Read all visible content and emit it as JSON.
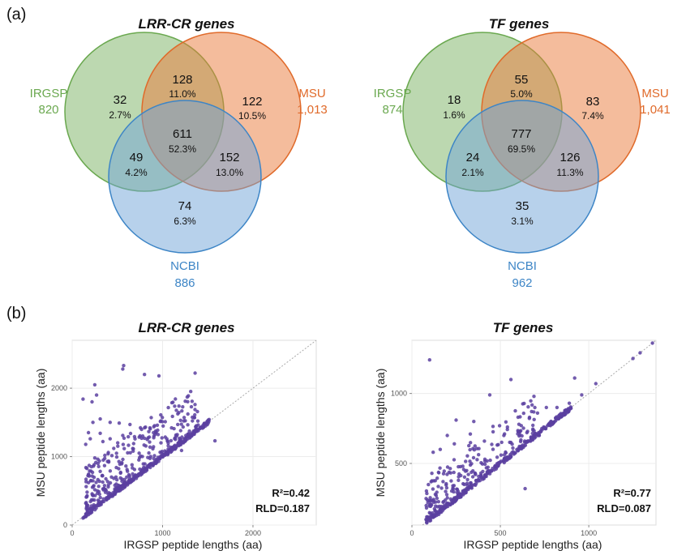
{
  "panel_labels": {
    "a": "(a)",
    "b": "(b)"
  },
  "colors": {
    "IRGSP": "#6aa84f",
    "MSU": "#e06a2a",
    "NCBI": "#3d85c6",
    "points": "#5b3fa0"
  },
  "chart_data": [
    {
      "type": "venn",
      "title": "LRR-CR genes",
      "sets": [
        {
          "name": "IRGSP",
          "total": "820"
        },
        {
          "name": "MSU",
          "total": "1,013"
        },
        {
          "name": "NCBI",
          "total": "886"
        }
      ],
      "regions": {
        "IRGSP_only": {
          "count": "32",
          "pct": "2.7%"
        },
        "IRGSP_MSU": {
          "count": "128",
          "pct": "11.0%"
        },
        "MSU_only": {
          "count": "122",
          "pct": "10.5%"
        },
        "all": {
          "count": "611",
          "pct": "52.3%"
        },
        "IRGSP_NCBI": {
          "count": "49",
          "pct": "4.2%"
        },
        "MSU_NCBI": {
          "count": "152",
          "pct": "13.0%"
        },
        "NCBI_only": {
          "count": "74",
          "pct": "6.3%"
        }
      }
    },
    {
      "type": "venn",
      "title": "TF genes",
      "sets": [
        {
          "name": "IRGSP",
          "total": "874"
        },
        {
          "name": "MSU",
          "total": "1,041"
        },
        {
          "name": "NCBI",
          "total": "962"
        }
      ],
      "regions": {
        "IRGSP_only": {
          "count": "18",
          "pct": "1.6%"
        },
        "IRGSP_MSU": {
          "count": "55",
          "pct": "5.0%"
        },
        "MSU_only": {
          "count": "83",
          "pct": "7.4%"
        },
        "all": {
          "count": "777",
          "pct": "69.5%"
        },
        "IRGSP_NCBI": {
          "count": "24",
          "pct": "2.1%"
        },
        "MSU_NCBI": {
          "count": "126",
          "pct": "11.3%"
        },
        "NCBI_only": {
          "count": "35",
          "pct": "3.1%"
        }
      }
    },
    {
      "type": "scatter",
      "title": "LRR-CR genes",
      "xlabel": "IRGSP peptide lengths (aa)",
      "ylabel": "MSU peptide lengths (aa)",
      "xlim": [
        0,
        2700
      ],
      "ylim": [
        0,
        2700
      ],
      "xticks": [
        0,
        1000,
        2000
      ],
      "yticks": [
        0,
        1000,
        2000
      ],
      "grid": true,
      "reference_line": "y = x",
      "r2": "R²=0.42",
      "rld": "RLD=0.187",
      "outliers": [
        [
          120,
          1840
        ],
        [
          220,
          1800
        ],
        [
          250,
          2050
        ],
        [
          270,
          1900
        ],
        [
          230,
          1500
        ],
        [
          180,
          1350
        ],
        [
          560,
          2280
        ],
        [
          570,
          2330
        ],
        [
          800,
          2200
        ],
        [
          960,
          2180
        ],
        [
          1360,
          2220
        ],
        [
          1580,
          1230
        ],
        [
          1210,
          1090
        ],
        [
          1130,
          1150
        ],
        [
          310,
          1550
        ],
        [
          420,
          1500
        ],
        [
          520,
          1490
        ],
        [
          640,
          1470
        ],
        [
          980,
          1520
        ],
        [
          1030,
          1510
        ],
        [
          200,
          1260
        ],
        [
          420,
          1260
        ],
        [
          150,
          1180
        ],
        [
          340,
          1220
        ],
        [
          460,
          1120
        ],
        [
          680,
          1190
        ],
        [
          780,
          1300
        ],
        [
          900,
          1350
        ],
        [
          1100,
          1420
        ],
        [
          1200,
          1380
        ],
        [
          310,
          1340
        ],
        [
          560,
          1310
        ],
        [
          860,
          1420
        ],
        [
          250,
          980
        ],
        [
          400,
          1060
        ]
      ],
      "cluster": {
        "n": 330,
        "xmin": 150,
        "xmax": 1400,
        "ymin_offset": 0,
        "ymax_offset": 700,
        "seed": 7
      },
      "diag": {
        "n": 260,
        "xmin": 120,
        "xmax": 1520,
        "jitter": 30,
        "seed": 11
      }
    },
    {
      "type": "scatter",
      "title": "TF genes",
      "xlabel": "IRGSP peptide lengths (aa)",
      "ylabel": "MSU peptide lengths (aa)",
      "xlim": [
        0,
        1380
      ],
      "ylim": [
        60,
        1380
      ],
      "xticks": [
        0,
        500,
        1000
      ],
      "yticks": [
        500,
        1000
      ],
      "grid": true,
      "reference_line": "y = x",
      "r2": "R²=0.77",
      "rld": "RLD=0.087",
      "outliers": [
        [
          100,
          1240
        ],
        [
          560,
          1100
        ],
        [
          440,
          990
        ],
        [
          640,
          320
        ],
        [
          920,
          1110
        ],
        [
          1290,
          1290
        ],
        [
          1360,
          1360
        ],
        [
          1250,
          1250
        ],
        [
          1040,
          1070
        ],
        [
          250,
          810
        ],
        [
          350,
          800
        ],
        [
          600,
          830
        ],
        [
          540,
          760
        ],
        [
          710,
          860
        ],
        [
          760,
          900
        ],
        [
          820,
          900
        ],
        [
          890,
          930
        ],
        [
          960,
          990
        ],
        [
          200,
          700
        ],
        [
          330,
          710
        ],
        [
          120,
          580
        ],
        [
          160,
          600
        ],
        [
          240,
          640
        ],
        [
          410,
          660
        ],
        [
          520,
          700
        ],
        [
          560,
          650
        ],
        [
          650,
          720
        ],
        [
          720,
          700
        ],
        [
          80,
          100
        ],
        [
          100,
          90
        ]
      ],
      "cluster": {
        "n": 230,
        "xmin": 80,
        "xmax": 700,
        "ymin_offset": 0,
        "ymax_offset": 320,
        "seed": 5
      },
      "diag": {
        "n": 280,
        "xmin": 80,
        "xmax": 900,
        "jitter": 16,
        "seed": 13
      }
    }
  ]
}
